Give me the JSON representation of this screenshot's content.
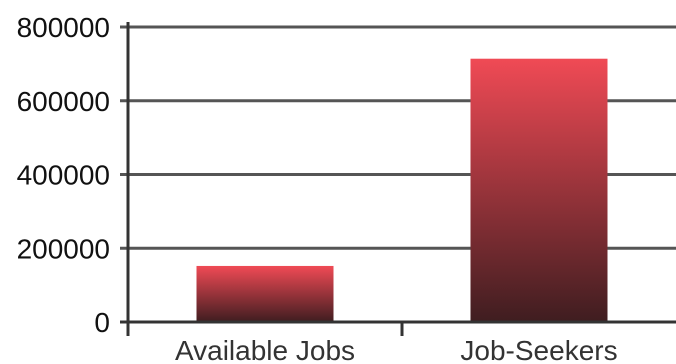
{
  "chart_data": {
    "type": "bar",
    "title": "",
    "xlabel": "",
    "ylabel": "",
    "categories": [
      "Available Jobs",
      "Job-Seekers"
    ],
    "values": [
      152000,
      714000
    ],
    "ylim": [
      0,
      800000
    ],
    "y_ticks": [
      "0",
      "200000",
      "400000",
      "600000",
      "800000"
    ],
    "grid": true,
    "legend": "none",
    "colors": {
      "bar_top": "#f04a55",
      "bar_bottom": "#3f1d20",
      "grid": "#555555",
      "axis": "#333333",
      "text": "#111111"
    }
  }
}
